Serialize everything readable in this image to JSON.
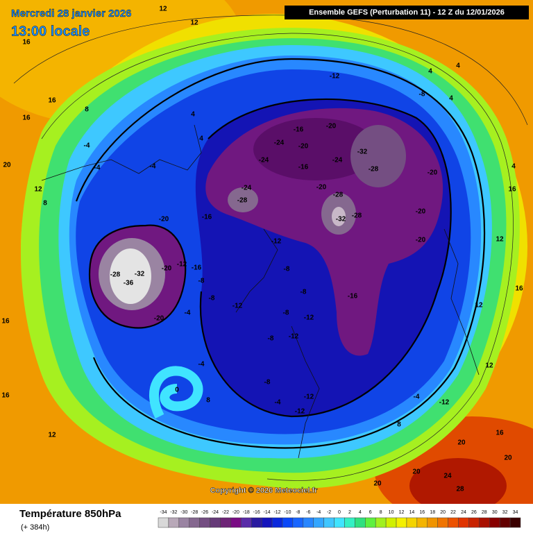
{
  "header": {
    "date": "Mercredi 28 janvier 2026",
    "time": "13:00 locale",
    "model": "Ensemble GEFS  (Perturbation 11)  -  12 Z du 12/01/2026"
  },
  "copyright": "Copyright © 2026 Meteociel.fr",
  "legend": {
    "title": "Température 850hPa",
    "subtitle": "(+ 384h)",
    "ticks": [
      -34,
      -32,
      -30,
      -28,
      -26,
      -24,
      -22,
      -20,
      -18,
      -16,
      -14,
      -12,
      -10,
      -8,
      -6,
      -4,
      -2,
      0,
      2,
      4,
      6,
      8,
      10,
      12,
      14,
      16,
      18,
      20,
      22,
      24,
      26,
      28,
      30,
      32,
      34
    ],
    "colors": [
      "#d8d8d8",
      "#b8a8b8",
      "#9a84a2",
      "#85688f",
      "#744e82",
      "#663a78",
      "#6e2476",
      "#7a0c84",
      "#5a2ca8",
      "#2a1aa0",
      "#1414bc",
      "#0a28dc",
      "#0a48f8",
      "#1866ff",
      "#2886ff",
      "#34a6ff",
      "#40c6ff",
      "#40e4ff",
      "#34f0c4",
      "#30e080",
      "#5ef040",
      "#a0f020",
      "#d0f000",
      "#f4f000",
      "#f4d400",
      "#f4b400",
      "#f09400",
      "#f07400",
      "#ec5200",
      "#e03400",
      "#c82200",
      "#a81000",
      "#880000",
      "#640000",
      "#3a0000"
    ]
  },
  "map": {
    "contour_labels": [
      12,
      12,
      16,
      16,
      8,
      16,
      4,
      4,
      -4,
      -4,
      -4,
      20,
      12,
      8,
      -12,
      -8,
      -16,
      -20,
      -24,
      -20,
      -24,
      -16,
      -24,
      -32,
      -28,
      -20,
      -24,
      -28,
      -20,
      -28,
      -28,
      -32,
      -20,
      -20,
      -20,
      -16,
      -12,
      -28,
      -36,
      -32,
      -20,
      -12,
      -16,
      -8,
      -8,
      -12,
      -8,
      -8,
      -8,
      -12,
      -16,
      -8,
      -12,
      -20,
      -4,
      -4,
      0,
      8,
      12,
      16,
      16,
      20,
      20,
      24,
      28,
      20,
      20,
      -12,
      -12,
      -12,
      8,
      16,
      16,
      12,
      12,
      12,
      16,
      -4,
      -8,
      -4,
      4,
      4,
      4,
      4
    ]
  }
}
